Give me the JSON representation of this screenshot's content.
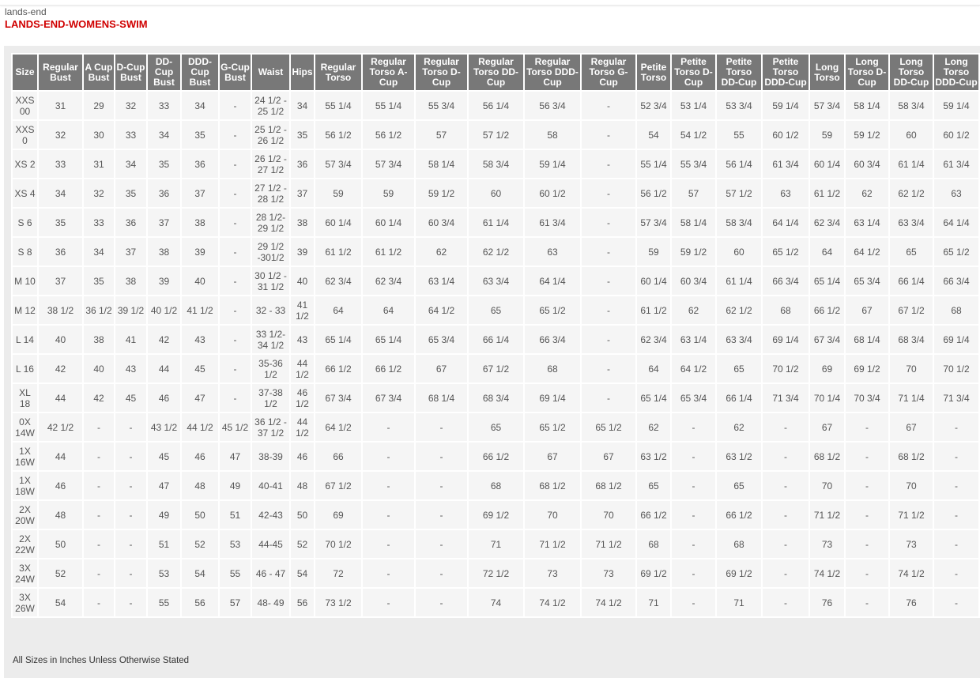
{
  "brand": "lands-end",
  "title": "LANDS-END-WOMENS-SWIM",
  "headers": [
    "Size",
    "Regular Bust",
    "A Cup Bust",
    "D-Cup Bust",
    "DD-Cup Bust",
    "DDD-Cup Bust",
    "G-Cup Bust",
    "Waist",
    "Hips",
    "Regular Torso",
    "Regular Torso A-Cup",
    "Regular Torso D-Cup",
    "Regular Torso DD-Cup",
    "Regular Torso DDD-Cup",
    "Regular Torso G-Cup",
    "Petite Torso",
    "Petite Torso D-Cup",
    "Petite Torso DD-Cup",
    "Petite Torso DDD-Cup",
    "Long Torso",
    "Long Torso D-Cup",
    "Long Torso DD-Cup",
    "Long Torso DDD-Cup"
  ],
  "rows": [
    [
      "XXS 00",
      "31",
      "29",
      "32",
      "33",
      "34",
      "-",
      "24 1/2 - 25 1/2",
      "34",
      "55 1/4",
      "55 1/4",
      "55 3/4",
      "56 1/4",
      "56 3/4",
      "-",
      "52 3/4",
      "53 1/4",
      "53 3/4",
      "59 1/4",
      "57 3/4",
      "58 1/4",
      "58 3/4",
      "59 1/4"
    ],
    [
      "XXS 0",
      "32",
      "30",
      "33",
      "34",
      "35",
      "-",
      "25 1/2 - 26 1/2",
      "35",
      "56 1/2",
      "56 1/2",
      "57",
      "57 1/2",
      "58",
      "-",
      "54",
      "54 1/2",
      "55",
      "60 1/2",
      "59",
      "59 1/2",
      "60",
      "60 1/2"
    ],
    [
      "XS 2",
      "33",
      "31",
      "34",
      "35",
      "36",
      "-",
      "26 1/2 - 27 1/2",
      "36",
      "57 3/4",
      "57 3/4",
      "58 1/4",
      "58 3/4",
      "59 1/4",
      "-",
      "55 1/4",
      "55 3/4",
      "56 1/4",
      "61 3/4",
      "60 1/4",
      "60 3/4",
      "61 1/4",
      "61 3/4"
    ],
    [
      "XS 4",
      "34",
      "32",
      "35",
      "36",
      "37",
      "-",
      "27 1/2 - 28 1/2",
      "37",
      "59",
      "59",
      "59 1/2",
      "60",
      "60 1/2",
      "-",
      "56 1/2",
      "57",
      "57 1/2",
      "63",
      "61 1/2",
      "62",
      "62 1/2",
      "63"
    ],
    [
      "S 6",
      "35",
      "33",
      "36",
      "37",
      "38",
      "-",
      "28 1/2- 29 1/2",
      "38",
      "60 1/4",
      "60 1/4",
      "60 3/4",
      "61 1/4",
      "61 3/4",
      "-",
      "57 3/4",
      "58 1/4",
      "58 3/4",
      "64 1/4",
      "62 3/4",
      "63 1/4",
      "63 3/4",
      "64 1/4"
    ],
    [
      "S 8",
      "36",
      "34",
      "37",
      "38",
      "39",
      "-",
      "29 1/2 -301/2",
      "39",
      "61 1/2",
      "61 1/2",
      "62",
      "62 1/2",
      "63",
      "-",
      "59",
      "59 1/2",
      "60",
      "65 1/2",
      "64",
      "64 1/2",
      "65",
      "65 1/2"
    ],
    [
      "M 10",
      "37",
      "35",
      "38",
      "39",
      "40",
      "-",
      "30 1/2 - 31 1/2",
      "40",
      "62 3/4",
      "62 3/4",
      "63 1/4",
      "63 3/4",
      "64 1/4",
      "-",
      "60 1/4",
      "60 3/4",
      "61 1/4",
      "66 3/4",
      "65 1/4",
      "65 3/4",
      "66 1/4",
      "66 3/4"
    ],
    [
      "M 12",
      "38 1/2",
      "36 1/2",
      "39 1/2",
      "40 1/2",
      "41 1/2",
      "-",
      "32 - 33",
      "41 1/2",
      "64",
      "64",
      "64 1/2",
      "65",
      "65 1/2",
      "-",
      "61 1/2",
      "62",
      "62 1/2",
      "68",
      "66 1/2",
      "67",
      "67 1/2",
      "68"
    ],
    [
      "L 14",
      "40",
      "38",
      "41",
      "42",
      "43",
      "-",
      "33 1/2- 34 1/2",
      "43",
      "65 1/4",
      "65 1/4",
      "65 3/4",
      "66 1/4",
      "66 3/4",
      "-",
      "62 3/4",
      "63 1/4",
      "63 3/4",
      "69 1/4",
      "67 3/4",
      "68 1/4",
      "68 3/4",
      "69 1/4"
    ],
    [
      "L 16",
      "42",
      "40",
      "43",
      "44",
      "45",
      "-",
      "35-36 1/2",
      "44 1/2",
      "66 1/2",
      "66 1/2",
      "67",
      "67 1/2",
      "68",
      "-",
      "64",
      "64 1/2",
      "65",
      "70 1/2",
      "69",
      "69 1/2",
      "70",
      "70 1/2"
    ],
    [
      "XL 18",
      "44",
      "42",
      "45",
      "46",
      "47",
      "-",
      "37-38 1/2",
      "46 1/2",
      "67 3/4",
      "67 3/4",
      "68 1/4",
      "68 3/4",
      "69 1/4",
      "-",
      "65 1/4",
      "65 3/4",
      "66 1/4",
      "71 3/4",
      "70 1/4",
      "70 3/4",
      "71 1/4",
      "71 3/4"
    ],
    [
      "0X 14W",
      "42 1/2",
      "-",
      "-",
      "43 1/2",
      "44 1/2",
      "45 1/2",
      "36 1/2 - 37 1/2",
      "44 1/2",
      "64 1/2",
      "-",
      "-",
      "65",
      "65 1/2",
      "65 1/2",
      "62",
      "-",
      "62",
      "-",
      "67",
      "-",
      "67",
      "-"
    ],
    [
      "1X 16W",
      "44",
      "-",
      "-",
      "45",
      "46",
      "47",
      "38-39",
      "46",
      "66",
      "-",
      "-",
      "66 1/2",
      "67",
      "67",
      "63 1/2",
      "-",
      "63 1/2",
      "-",
      "68 1/2",
      "-",
      "68 1/2",
      "-"
    ],
    [
      "1X 18W",
      "46",
      "-",
      "-",
      "47",
      "48",
      "49",
      "40-41",
      "48",
      "67 1/2",
      "-",
      "-",
      "68",
      "68 1/2",
      "68 1/2",
      "65",
      "-",
      "65",
      "-",
      "70",
      "-",
      "70",
      "-"
    ],
    [
      "2X 20W",
      "48",
      "-",
      "-",
      "49",
      "50",
      "51",
      "42-43",
      "50",
      "69",
      "-",
      "-",
      "69 1/2",
      "70",
      "70",
      "66 1/2",
      "-",
      "66 1/2",
      "-",
      "71 1/2",
      "-",
      "71 1/2",
      "-"
    ],
    [
      "2X 22W",
      "50",
      "-",
      "-",
      "51",
      "52",
      "53",
      "44-45",
      "52",
      "70 1/2",
      "-",
      "-",
      "71",
      "71 1/2",
      "71 1/2",
      "68",
      "-",
      "68",
      "-",
      "73",
      "-",
      "73",
      "-"
    ],
    [
      "3X 24W",
      "52",
      "-",
      "-",
      "53",
      "54",
      "55",
      "46 - 47",
      "54",
      "72",
      "-",
      "-",
      "72 1/2",
      "73",
      "73",
      "69 1/2",
      "-",
      "69 1/2",
      "-",
      "74 1/2",
      "-",
      "74 1/2",
      "-"
    ],
    [
      "3X 26W",
      "54",
      "-",
      "-",
      "55",
      "56",
      "57",
      "48- 49",
      "56",
      "73 1/2",
      "-",
      "-",
      "74",
      "74 1/2",
      "74 1/2",
      "71",
      "-",
      "71",
      "-",
      "76",
      "-",
      "76",
      "-"
    ]
  ],
  "footnote": "All Sizes in Inches Unless Otherwise Stated",
  "colors": {
    "title": "#d00000",
    "header_bg": "#787878",
    "cell_bg": "#f5f5f5"
  }
}
